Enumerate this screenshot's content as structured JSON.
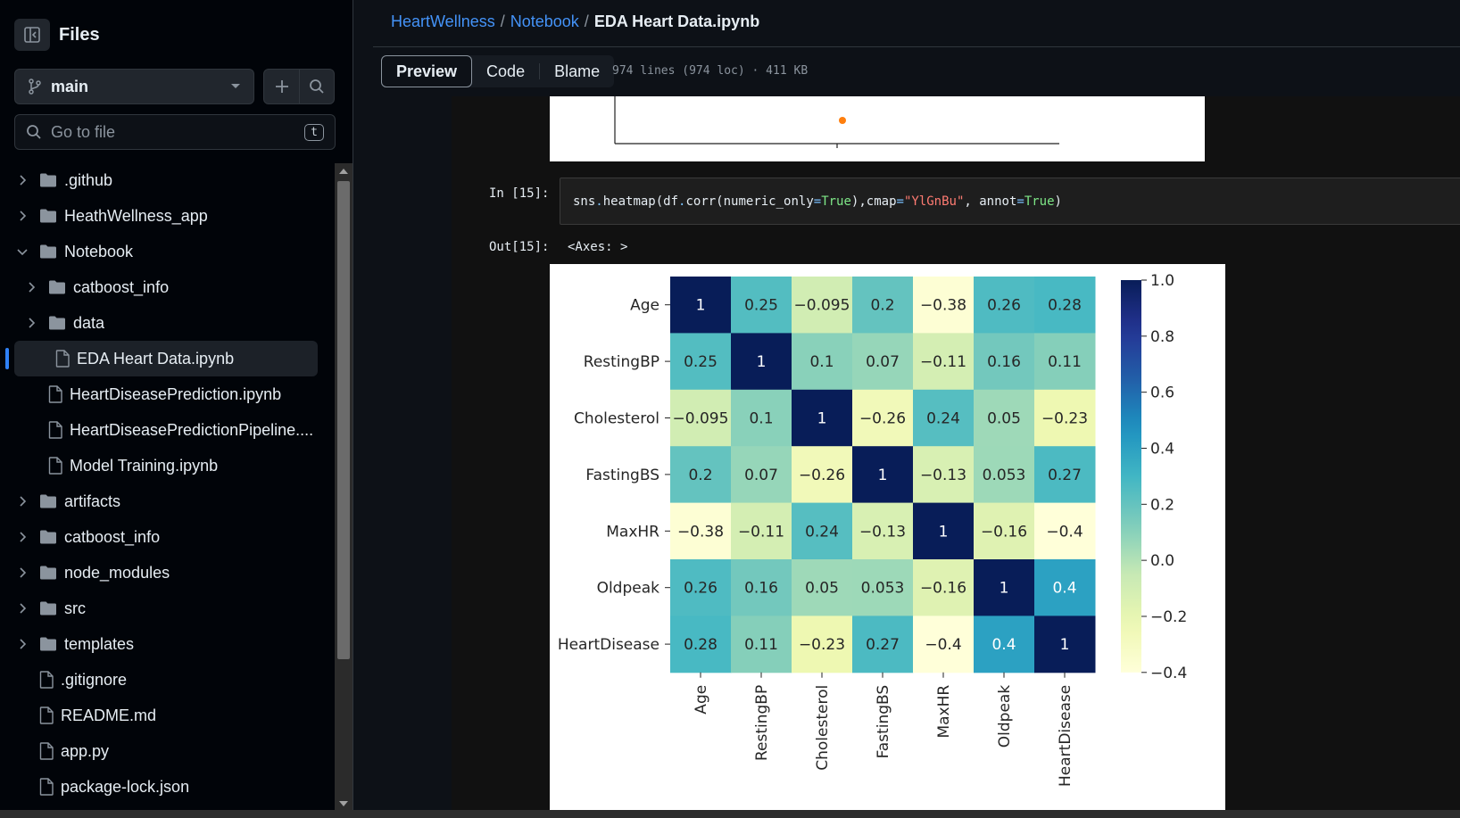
{
  "sidebar": {
    "title": "Files",
    "branch": "main",
    "goto_placeholder": "Go to file",
    "goto_shortcut": "t",
    "tree": [
      {
        "label": ".github",
        "type": "folder",
        "level": 0,
        "expanded": false
      },
      {
        "label": "HeathWellness_app",
        "type": "folder",
        "level": 0,
        "expanded": false
      },
      {
        "label": "Notebook",
        "type": "folder",
        "level": 0,
        "expanded": true
      },
      {
        "label": "catboost_info",
        "type": "folder",
        "level": 1,
        "expanded": false
      },
      {
        "label": "data",
        "type": "folder",
        "level": 1,
        "expanded": false
      },
      {
        "label": "EDA Heart Data.ipynb",
        "type": "file",
        "level": 1,
        "selected": true
      },
      {
        "label": "HeartDiseasePrediction.ipynb",
        "type": "file",
        "level": 1
      },
      {
        "label": "HeartDiseasePredictionPipeline....",
        "type": "file",
        "level": 1
      },
      {
        "label": "Model Training.ipynb",
        "type": "file",
        "level": 1
      },
      {
        "label": "artifacts",
        "type": "folder",
        "level": 0,
        "expanded": false
      },
      {
        "label": "catboost_info",
        "type": "folder",
        "level": 0,
        "expanded": false
      },
      {
        "label": "node_modules",
        "type": "folder",
        "level": 0,
        "expanded": false
      },
      {
        "label": "src",
        "type": "folder",
        "level": 0,
        "expanded": false
      },
      {
        "label": "templates",
        "type": "folder",
        "level": 0,
        "expanded": false
      },
      {
        "label": ".gitignore",
        "type": "file",
        "level": 0
      },
      {
        "label": "README.md",
        "type": "file",
        "level": 0
      },
      {
        "label": "app.py",
        "type": "file",
        "level": 0
      },
      {
        "label": "package-lock.json",
        "type": "file",
        "level": 0
      }
    ]
  },
  "header": {
    "crumb_root": "HeartWellness",
    "crumb_folder": "Notebook",
    "crumb_file": "EDA Heart Data.ipynb",
    "separator": "/"
  },
  "tabs": {
    "preview": "Preview",
    "code": "Code",
    "blame": "Blame"
  },
  "file_meta": "974 lines (974 loc) · 411 KB",
  "cell": {
    "in_label": "In [15]:",
    "out_label": "Out[15]:",
    "output_text": "<Axes: >",
    "code_parts": [
      {
        "t": "sns",
        "c": ""
      },
      {
        "t": ".",
        "c": "op"
      },
      {
        "t": "heatmap(df",
        "c": ""
      },
      {
        "t": ".",
        "c": "op"
      },
      {
        "t": "corr(numeric_only",
        "c": ""
      },
      {
        "t": "=",
        "c": "op"
      },
      {
        "t": "True",
        "c": "kw"
      },
      {
        "t": "),cmap",
        "c": ""
      },
      {
        "t": "=",
        "c": "op"
      },
      {
        "t": "\"YlGnBu\"",
        "c": "str"
      },
      {
        "t": ", annot",
        "c": ""
      },
      {
        "t": "=",
        "c": "op"
      },
      {
        "t": "True",
        "c": "kw"
      },
      {
        "t": ")",
        "c": ""
      }
    ]
  },
  "chart_data": {
    "type": "heatmap",
    "rows": [
      "Age",
      "RestingBP",
      "Cholesterol",
      "FastingBS",
      "MaxHR",
      "Oldpeak",
      "HeartDisease"
    ],
    "columns": [
      "Age",
      "RestingBP",
      "Cholesterol",
      "FastingBS",
      "MaxHR",
      "Oldpeak",
      "HeartDisease"
    ],
    "values": [
      [
        1,
        0.25,
        -0.095,
        0.2,
        -0.38,
        0.26,
        0.28
      ],
      [
        0.25,
        1,
        0.1,
        0.07,
        -0.11,
        0.16,
        0.11
      ],
      [
        -0.095,
        0.1,
        1,
        -0.26,
        0.24,
        0.05,
        -0.23
      ],
      [
        0.2,
        0.07,
        -0.26,
        1,
        -0.13,
        0.053,
        0.27
      ],
      [
        -0.38,
        -0.11,
        0.24,
        -0.13,
        1,
        -0.16,
        -0.4
      ],
      [
        0.26,
        0.16,
        0.05,
        0.053,
        -0.16,
        1,
        0.4
      ],
      [
        0.28,
        0.11,
        -0.23,
        0.27,
        -0.4,
        0.4,
        1
      ]
    ],
    "colormap": "YlGnBu",
    "colorbar_range": [
      -0.4,
      1.0
    ],
    "colorbar_ticks": [
      "1.0",
      "0.8",
      "0.6",
      "0.4",
      "0.2",
      "0.0",
      "−0.2",
      "−0.4"
    ]
  },
  "colors": {
    "accent": "#2f81f7",
    "link": "#4493f8",
    "dot": "#ff7f0e"
  }
}
